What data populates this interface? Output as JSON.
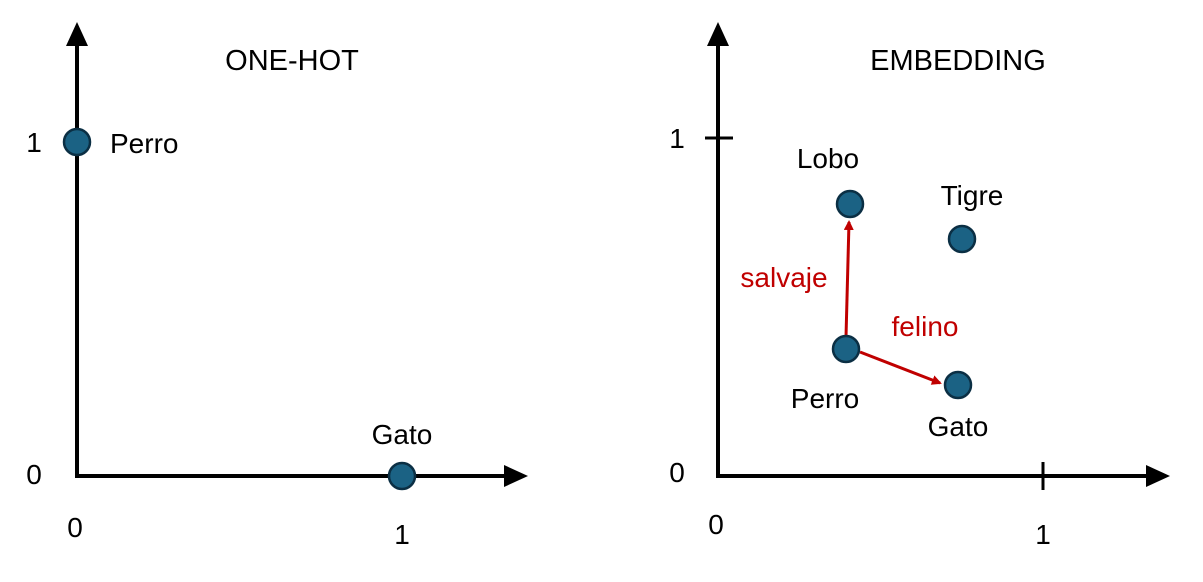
{
  "colors": {
    "point_fill": "#1b6284",
    "point_stroke": "#0b2f44",
    "vector": "#c00000",
    "axis": "#000000"
  },
  "left": {
    "title": "ONE-HOT",
    "x_ticks": [
      "0",
      "1"
    ],
    "y_ticks": [
      "0",
      "1"
    ],
    "points": [
      {
        "name": "Perro",
        "x": 0,
        "y": 1
      },
      {
        "name": "Gato",
        "x": 1,
        "y": 0
      }
    ]
  },
  "right": {
    "title": "EMBEDDING",
    "x_ticks": [
      "0",
      "1"
    ],
    "y_ticks": [
      "0",
      "1"
    ],
    "points": [
      {
        "name": "Lobo",
        "x": 0.4,
        "y": 0.8
      },
      {
        "name": "Tigre",
        "x": 0.75,
        "y": 0.7
      },
      {
        "name": "Perro",
        "x": 0.4,
        "y": 0.37
      },
      {
        "name": "Gato",
        "x": 0.73,
        "y": 0.27
      }
    ],
    "vectors": [
      {
        "label": "salvaje",
        "from": "Perro",
        "to": "Lobo"
      },
      {
        "label": "felino",
        "from": "Perro",
        "to": "Gato"
      }
    ]
  }
}
